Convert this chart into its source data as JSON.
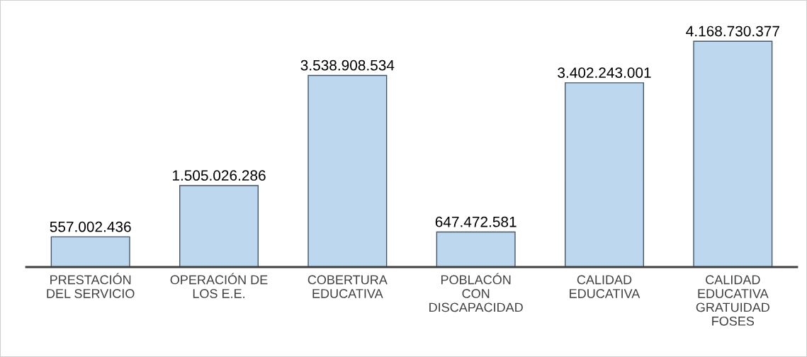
{
  "chart_data": {
    "type": "bar",
    "categories": [
      "PRESTACIÓN\nDEL SERVICIO",
      "OPERACIÓN DE\nLOS E.E.",
      "COBERTURA\nEDUCATIVA",
      "POBLACÓN\nCON\nDISCAPACIDAD",
      "CALIDAD\nEDUCATIVA",
      "CALIDAD\nEDUCATIVA\nGRATUIDAD\nFOSES"
    ],
    "values": [
      557002436,
      1505026286,
      3538908534,
      647472581,
      3402243001,
      4168730377
    ],
    "value_labels": [
      "557.002.436",
      "1.505.026.286",
      "3.538.908.534",
      "647.472.581",
      "3.402.243.001",
      "4.168.730.377"
    ],
    "color": "#bdd7ee",
    "grid": false,
    "legend": false
  }
}
